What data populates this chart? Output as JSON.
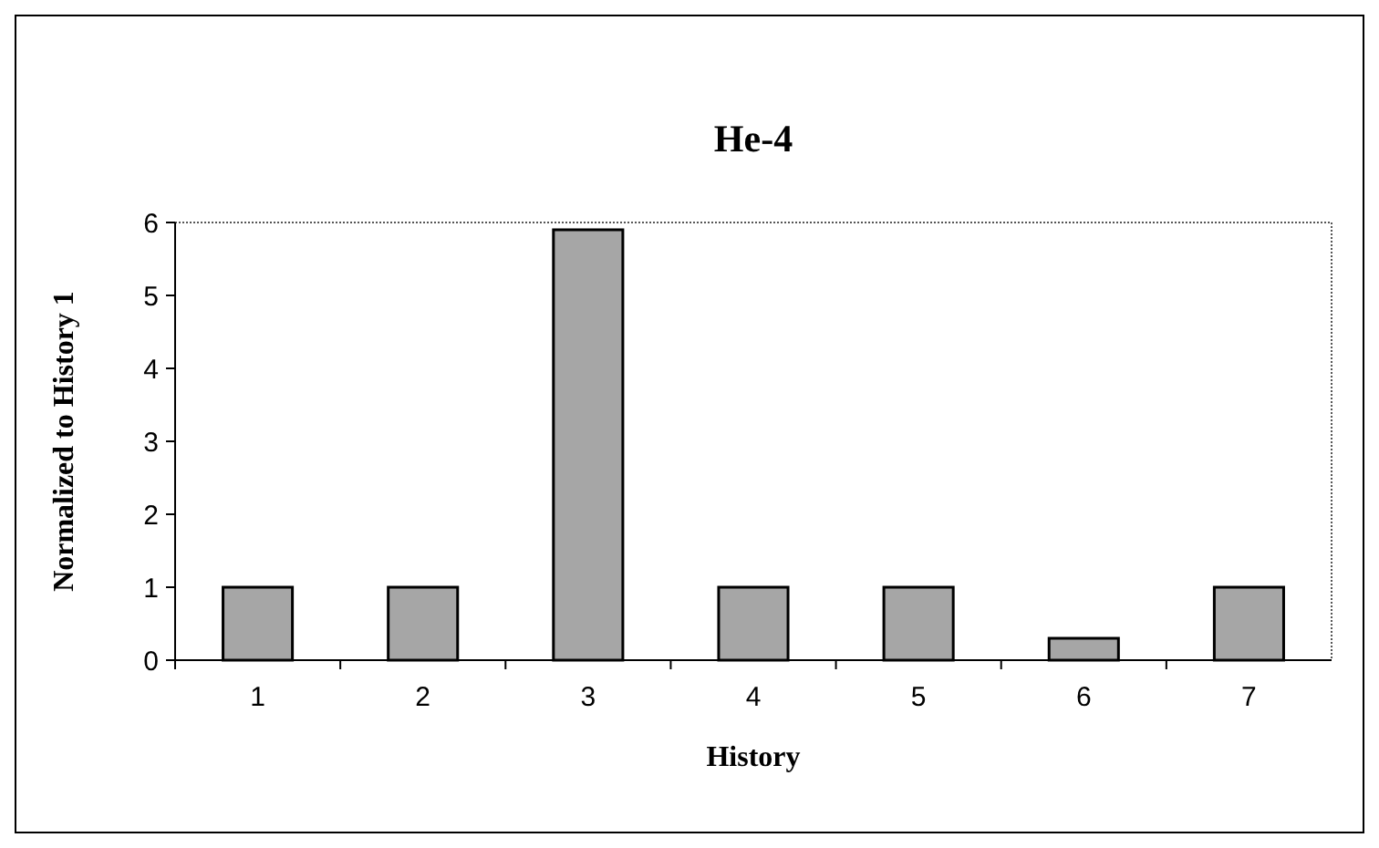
{
  "chart_data": {
    "type": "bar",
    "title": "He-4",
    "xlabel": "History",
    "ylabel": "Normalized to History 1",
    "categories": [
      "1",
      "2",
      "3",
      "4",
      "5",
      "6",
      "7"
    ],
    "values": [
      1,
      1,
      5.9,
      1,
      1,
      0.3,
      1
    ],
    "color": "#a6a6a6",
    "ylim": [
      0,
      6
    ],
    "yticks": [
      0,
      1,
      2,
      3,
      4,
      5,
      6
    ],
    "grid": false
  }
}
